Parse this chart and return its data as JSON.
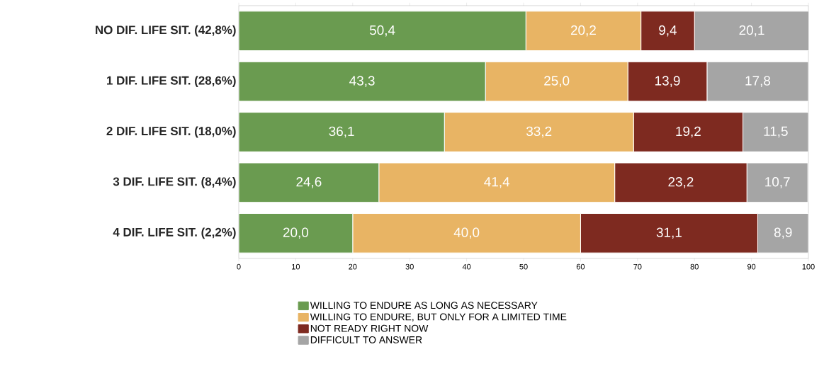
{
  "chart_data": {
    "type": "bar",
    "orientation": "horizontal",
    "stacked": true,
    "categories": [
      "NO DIF. LIFE SIT. (42,8%)",
      "1 DIF. LIFE SIT. (28,6%)",
      "2 DIF. LIFE SIT. (18,0%)",
      "3 DIF. LIFE SIT. (8,4%)",
      "4 DIF. LIFE SIT. (2,2%)"
    ],
    "series": [
      {
        "name": "WILLING TO ENDURE AS LONG AS NECESSARY",
        "color": "#6a9b50",
        "values": [
          50.4,
          43.3,
          36.1,
          24.6,
          20.0
        ],
        "value_labels": [
          "50,4",
          "43,3",
          "36,1",
          "24,6",
          "20,0"
        ]
      },
      {
        "name": "WILLING TO ENDURE, BUT ONLY FOR A LIMITED TIME",
        "color": "#e8b464",
        "values": [
          20.2,
          25.0,
          33.2,
          41.4,
          40.0
        ],
        "value_labels": [
          "20,2",
          "25,0",
          "33,2",
          "41,4",
          "40,0"
        ]
      },
      {
        "name": "NOT READY RIGHT NOW",
        "color": "#7e2a20",
        "values": [
          9.4,
          13.9,
          19.2,
          23.2,
          31.1
        ],
        "value_labels": [
          "9,4",
          "13,9",
          "19,2",
          "23,2",
          "31,1"
        ]
      },
      {
        "name": "DIFFICULT TO ANSWER",
        "color": "#a5a5a5",
        "values": [
          20.1,
          17.8,
          11.5,
          10.7,
          8.9
        ],
        "value_labels": [
          "20,1",
          "17,8",
          "11,5",
          "10,7",
          "8,9"
        ]
      }
    ],
    "xlim": [
      0,
      100
    ],
    "xticks": [
      0,
      10,
      20,
      30,
      40,
      50,
      60,
      70,
      80,
      90,
      100
    ],
    "grid": false,
    "legend": "bottom"
  }
}
